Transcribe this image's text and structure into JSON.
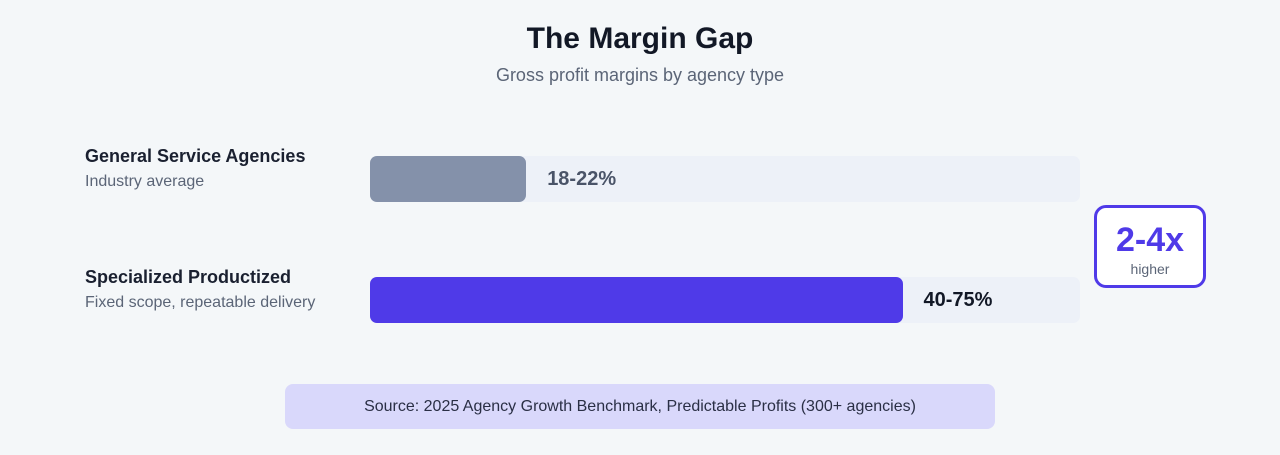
{
  "chart_data": {
    "type": "bar",
    "orientation": "horizontal",
    "title": "The Margin Gap",
    "subtitle": "Gross profit margins by agency type",
    "xlim": [
      0,
      100
    ],
    "grid": false,
    "categories": [
      "General Service Agencies",
      "Specialized Productized"
    ],
    "descriptions": [
      "Industry average",
      "Fixed scope, repeatable delivery"
    ],
    "series": [
      {
        "values": [
          [
            18,
            22
          ],
          [
            40,
            75
          ]
        ]
      }
    ],
    "value_labels": [
      "18-22%",
      "40-75%"
    ],
    "colors": [
      "#8491aa",
      "#4f3ae8"
    ],
    "annotation": {
      "value": "2-4x",
      "label": "higher",
      "color": "#4f3ae8"
    },
    "source": "Source: 2025 Agency Growth Benchmark, Predictable Profits (300+ agencies)"
  }
}
